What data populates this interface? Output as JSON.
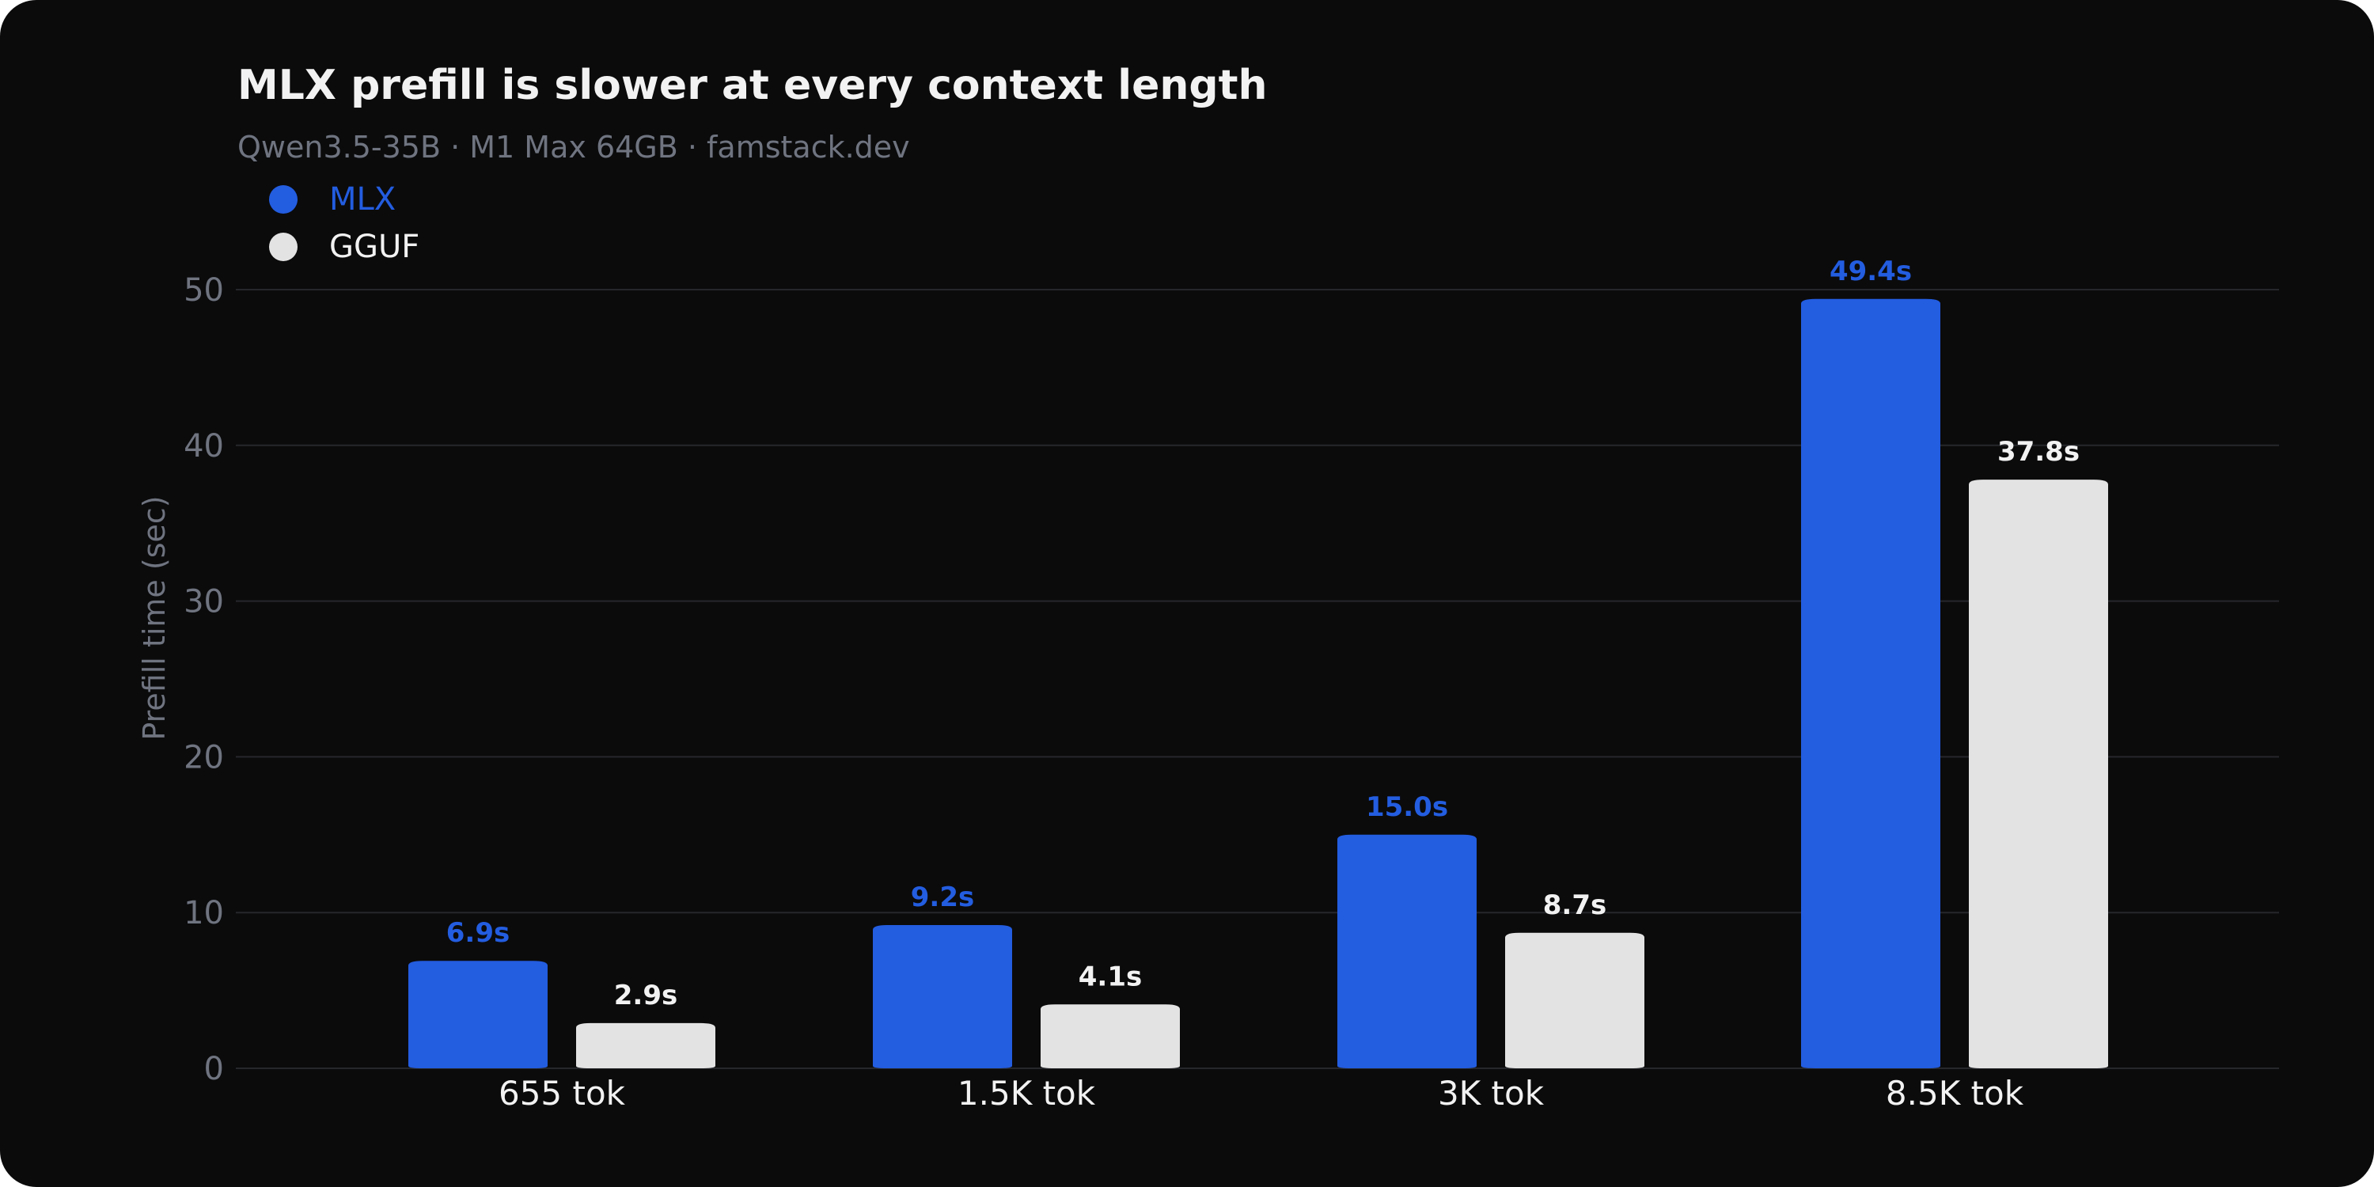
{
  "title": "MLX prefill is slower at every context length",
  "subtitle": "Qwen3.5-35B · M1 Max 64GB · famstack.dev",
  "colors": {
    "background": "#0b0b0c",
    "mlx": "#235de0",
    "gguf": "#e3e3e3",
    "axis_text": "#6f7480",
    "category_text": "#f2f2f2",
    "grid": "#26272b"
  },
  "legend": [
    {
      "name": "MLX",
      "color": "#235de0"
    },
    {
      "name": "GGUF",
      "color": "#e3e3e3"
    }
  ],
  "chart_data": {
    "type": "bar",
    "title": "MLX prefill is slower at every context length",
    "subtitle": "Qwen3.5-35B · M1 Max 64GB · famstack.dev",
    "xlabel": "",
    "ylabel": "Prefill time (sec)",
    "ylim": [
      0,
      50
    ],
    "yticks": [
      "0",
      "10",
      "20",
      "30",
      "40",
      "50"
    ],
    "categories": [
      "655 tok",
      "1.5K tok",
      "3K tok",
      "8.5K tok"
    ],
    "series": [
      {
        "name": "MLX",
        "values": [
          6.9,
          9.2,
          15.0,
          49.4
        ],
        "labels": [
          "6.9s",
          "9.2s",
          "15.0s",
          "49.4s"
        ],
        "color": "#235de0"
      },
      {
        "name": "GGUF",
        "values": [
          2.9,
          4.1,
          8.7,
          37.8
        ],
        "labels": [
          "2.9s",
          "4.1s",
          "8.7s",
          "37.8s"
        ],
        "color": "#e3e3e3"
      }
    ],
    "grid": true,
    "legend_position": "top-left"
  }
}
